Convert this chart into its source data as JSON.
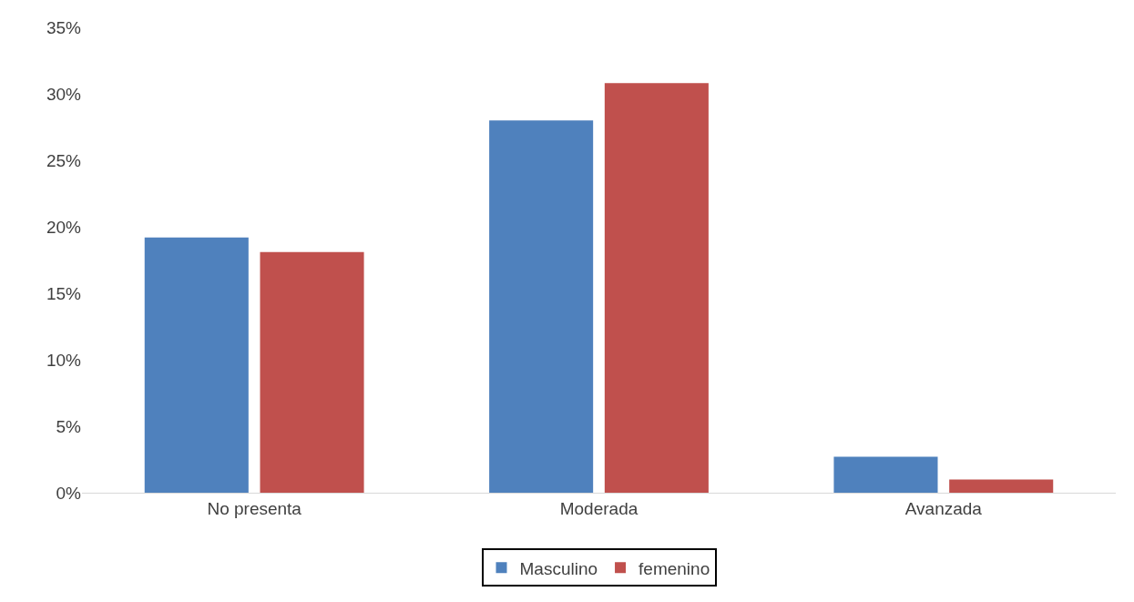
{
  "chart_data": {
    "type": "bar",
    "categories": [
      "No presenta",
      "Moderada",
      "Avanzada"
    ],
    "series": [
      {
        "name": "Masculino",
        "color": "#4f81bd",
        "values": [
          19.2,
          28.0,
          2.7
        ]
      },
      {
        "name": "femenino",
        "color": "#c0504d",
        "values": [
          18.1,
          30.8,
          1.0
        ]
      }
    ],
    "ylim": [
      0,
      35
    ],
    "yticks": [
      {
        "value": 0,
        "label": "0%"
      },
      {
        "value": 5,
        "label": "5%"
      },
      {
        "value": 10,
        "label": "10%"
      },
      {
        "value": 15,
        "label": "15%"
      },
      {
        "value": 20,
        "label": "20%"
      },
      {
        "value": 25,
        "label": "25%"
      },
      {
        "value": 30,
        "label": "30%"
      },
      {
        "value": 35,
        "label": "35%"
      }
    ],
    "grid": false,
    "legend": "bottom"
  }
}
